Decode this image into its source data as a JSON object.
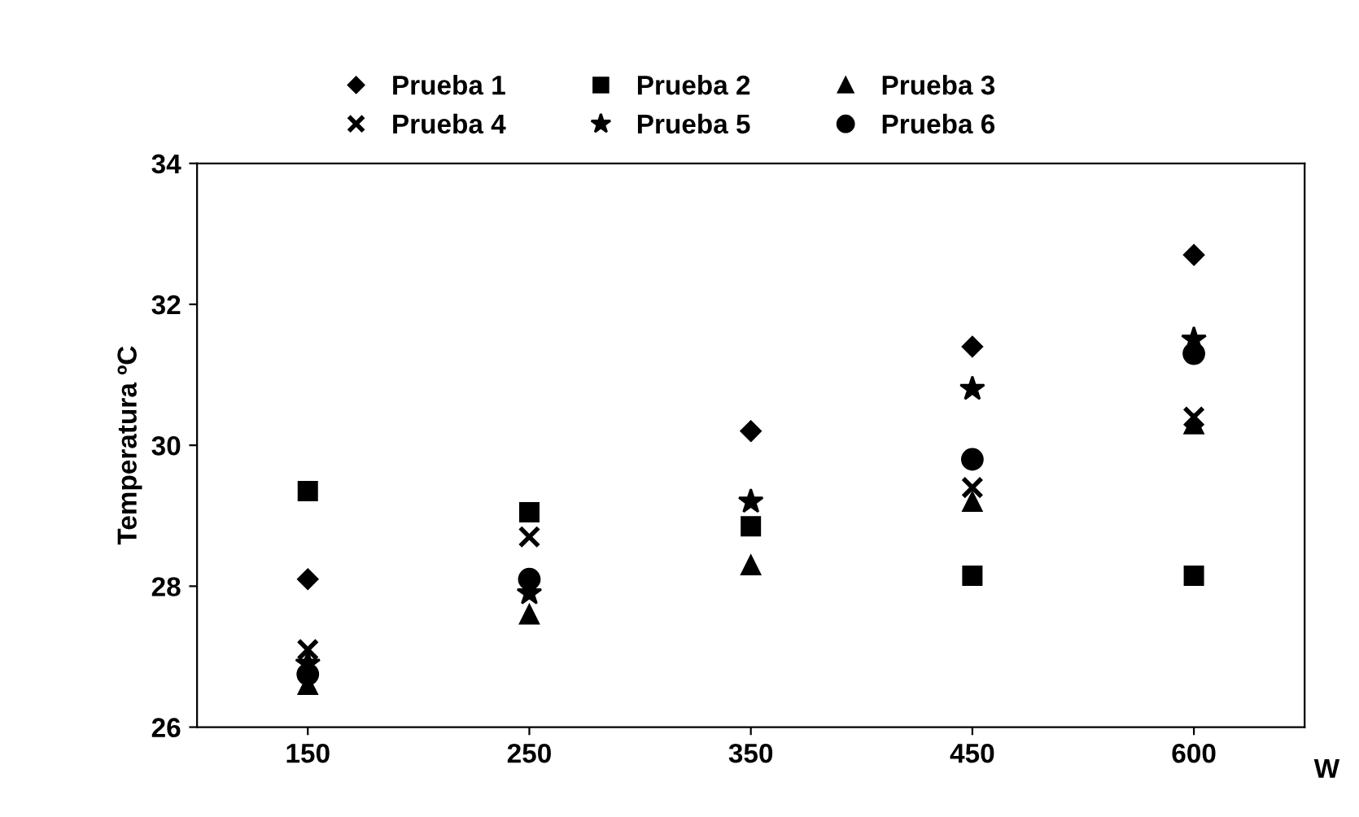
{
  "chart_data": {
    "type": "scatter",
    "ylabel": "Temperatura ºC",
    "xlabel": "W",
    "categories": [
      "150",
      "250",
      "350",
      "450",
      "600"
    ],
    "ylim": [
      26,
      34
    ],
    "yticks": [
      26,
      28,
      30,
      32,
      34
    ],
    "grid": false,
    "legend": "top",
    "series": [
      {
        "name": "Prueba 1",
        "color": "#000000",
        "marker": "diamond",
        "values": [
          28.1,
          null,
          30.2,
          31.4,
          32.7
        ]
      },
      {
        "name": "Prueba 2",
        "color": "#000000",
        "marker": "square",
        "values": [
          29.35,
          29.05,
          28.85,
          28.15,
          28.15
        ]
      },
      {
        "name": "Prueba 3",
        "color": "#000000",
        "marker": "triangle",
        "values": [
          26.6,
          27.6,
          28.3,
          29.2,
          30.3
        ]
      },
      {
        "name": "Prueba 4",
        "color": "#000000",
        "marker": "cross",
        "values": [
          27.1,
          28.7,
          null,
          29.4,
          30.4
        ]
      },
      {
        "name": "Prueba 5",
        "color": "#000000",
        "marker": "star",
        "values": [
          26.9,
          27.9,
          29.2,
          30.8,
          31.5
        ]
      },
      {
        "name": "Prueba 6",
        "color": "#000000",
        "marker": "circle",
        "values": [
          26.75,
          28.1,
          null,
          29.8,
          31.3
        ]
      }
    ]
  }
}
